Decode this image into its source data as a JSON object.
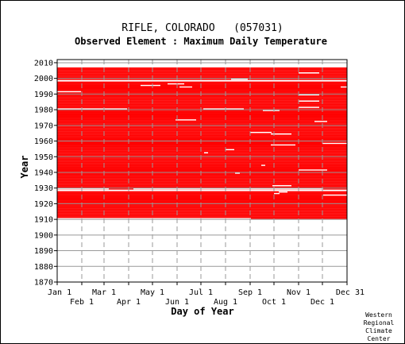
{
  "chart_data": {
    "type": "heatmap",
    "title": "RIFLE, COLORADO   (057031)",
    "subtitle": "Observed Element : Maximum Daily Temperature",
    "xlabel": "Day of Year",
    "ylabel": "Year",
    "xlim": [
      1,
      365
    ],
    "ylim": [
      1870,
      2012
    ],
    "y_ticks": [
      1870,
      1880,
      1890,
      1900,
      1910,
      1920,
      1930,
      1940,
      1950,
      1960,
      1970,
      1980,
      1990,
      2000,
      2010
    ],
    "x_ticks_upper": [
      {
        "label": "Jan 1",
        "day": 1
      },
      {
        "label": "Mar 1",
        "day": 60
      },
      {
        "label": "May 1",
        "day": 121
      },
      {
        "label": "Jul 1",
        "day": 182
      },
      {
        "label": "Sep 1",
        "day": 244
      },
      {
        "label": "Nov 1",
        "day": 305
      },
      {
        "label": "Dec 31",
        "day": 365
      }
    ],
    "x_ticks_lower": [
      {
        "label": "Feb 1",
        "day": 32
      },
      {
        "label": "Apr 1",
        "day": 91
      },
      {
        "label": "Jun 1",
        "day": 152
      },
      {
        "label": "Aug 1",
        "day": 213
      },
      {
        "label": "Oct 1",
        "day": 274
      },
      {
        "label": "Dec 1",
        "day": 335
      }
    ],
    "grid": true,
    "present_color": "#ff0000",
    "record": {
      "start_year": 1910,
      "start_day": 1,
      "end_year": 2006,
      "end_day": 365,
      "first_year_start_day": 245
    },
    "missing_years": [
      1928,
      1998
    ],
    "partial_missing_years": [
      {
        "year": 1929,
        "start_day": 1,
        "end_day": 65
      },
      {
        "year": 1929,
        "start_day": 97,
        "end_day": 335
      },
      {
        "year": 1927,
        "start_day": 280,
        "end_day": 290
      },
      {
        "year": 1925,
        "start_day": 336,
        "end_day": 365
      }
    ],
    "missing_segments": [
      {
        "year": 1998,
        "start_day": 1,
        "end_day": 365
      },
      {
        "year": 1991,
        "start_day": 1,
        "end_day": 30
      },
      {
        "year": 1980,
        "start_day": 1,
        "end_day": 88
      },
      {
        "year": 1998,
        "start_day": 190,
        "end_day": 205
      },
      {
        "year": 1995,
        "start_day": 106,
        "end_day": 130
      },
      {
        "year": 1996,
        "start_day": 140,
        "end_day": 160
      },
      {
        "year": 1994,
        "start_day": 155,
        "end_day": 170
      },
      {
        "year": 1999,
        "start_day": 220,
        "end_day": 240
      },
      {
        "year": 2003,
        "start_day": 305,
        "end_day": 330
      },
      {
        "year": 1994,
        "start_day": 358,
        "end_day": 365
      },
      {
        "year": 1989,
        "start_day": 305,
        "end_day": 330
      },
      {
        "year": 1985,
        "start_day": 305,
        "end_day": 330
      },
      {
        "year": 1981,
        "start_day": 305,
        "end_day": 330
      },
      {
        "year": 1980,
        "start_day": 185,
        "end_day": 235
      },
      {
        "year": 1979,
        "start_day": 260,
        "end_day": 280
      },
      {
        "year": 1973,
        "start_day": 150,
        "end_day": 175
      },
      {
        "year": 1972,
        "start_day": 325,
        "end_day": 340
      },
      {
        "year": 1965,
        "start_day": 244,
        "end_day": 270
      },
      {
        "year": 1964,
        "start_day": 270,
        "end_day": 295
      },
      {
        "year": 1957,
        "start_day": 270,
        "end_day": 300
      },
      {
        "year": 1958,
        "start_day": 335,
        "end_day": 365
      },
      {
        "year": 1954,
        "start_day": 213,
        "end_day": 223
      },
      {
        "year": 1952,
        "start_day": 186,
        "end_day": 190
      },
      {
        "year": 1944,
        "start_day": 258,
        "end_day": 262
      },
      {
        "year": 1941,
        "start_day": 305,
        "end_day": 340
      },
      {
        "year": 1939,
        "start_day": 225,
        "end_day": 230
      },
      {
        "year": 1931,
        "start_day": 272,
        "end_day": 295
      },
      {
        "year": 1926,
        "start_day": 274,
        "end_day": 280
      },
      {
        "year": 1910,
        "start_day": 1,
        "end_day": 244
      }
    ],
    "credit": [
      "Western",
      "Regional",
      "Climate",
      "Center"
    ]
  }
}
